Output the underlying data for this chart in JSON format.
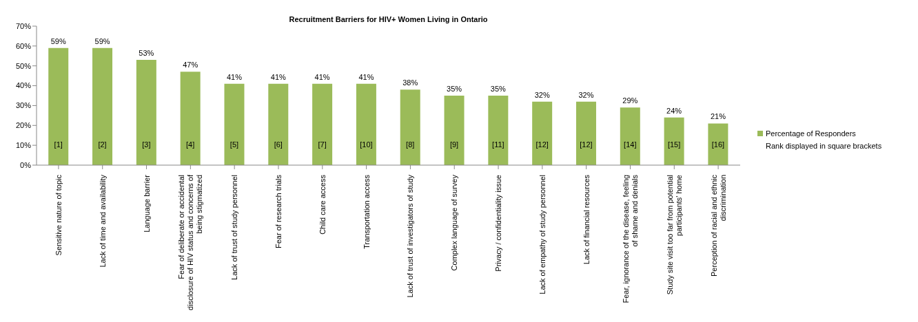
{
  "chart_data": {
    "type": "bar",
    "title": "Recruitment Barriers for HIV+ Women Living in Ontario",
    "categories": [
      "Sensitive nature of topic",
      "Lack of time and availability",
      "Language barrier",
      "Fear of deliberate or accidental disclosure of HIV status and concerns of being stigmatized",
      "Lack of trust of study personnel",
      "Fear of research trials",
      "Child care access",
      "Transportation access",
      "Lack of trust of investigators of study",
      "Complex language of survey",
      "Privacy / confidentiality issue",
      "Lack of empathy of study personnel",
      "Lack of financial resources",
      "Fear, ignorance of the disease, feeling of shame and denials",
      "Study site visit too far from potential participants' home",
      "Perception of racial and ethnic discrimination"
    ],
    "series": [
      {
        "name": "Percentage of Responders",
        "color": "#9bbb59",
        "values": [
          59,
          59,
          53,
          47,
          41,
          41,
          41,
          41,
          38,
          35,
          35,
          32,
          32,
          29,
          24,
          21
        ],
        "value_labels": [
          "59%",
          "59%",
          "53%",
          "47%",
          "41%",
          "41%",
          "41%",
          "41%",
          "38%",
          "35%",
          "35%",
          "32%",
          "32%",
          "29%",
          "24%",
          "21%"
        ]
      }
    ],
    "ylim": [
      0,
      70
    ],
    "yticks": [
      {
        "value": 0,
        "label": "0%"
      },
      {
        "value": 10,
        "label": "10%"
      },
      {
        "value": 20,
        "label": "20%"
      },
      {
        "value": 30,
        "label": "30%"
      },
      {
        "value": 40,
        "label": "40%"
      },
      {
        "value": 50,
        "label": "50%"
      },
      {
        "value": 60,
        "label": "60%"
      },
      {
        "value": 70,
        "label": "70%"
      }
    ],
    "legend": "right",
    "annotations": [
      "Rank displayed in square brackets",
      "[1]",
      "[2]",
      "[3]",
      "[4]",
      "[5]",
      "[6]",
      "[7]",
      "[10]",
      "[8]",
      "[9]",
      "[11]",
      "[12]",
      "[12]",
      "[14]",
      "[15]",
      "[16]"
    ]
  }
}
